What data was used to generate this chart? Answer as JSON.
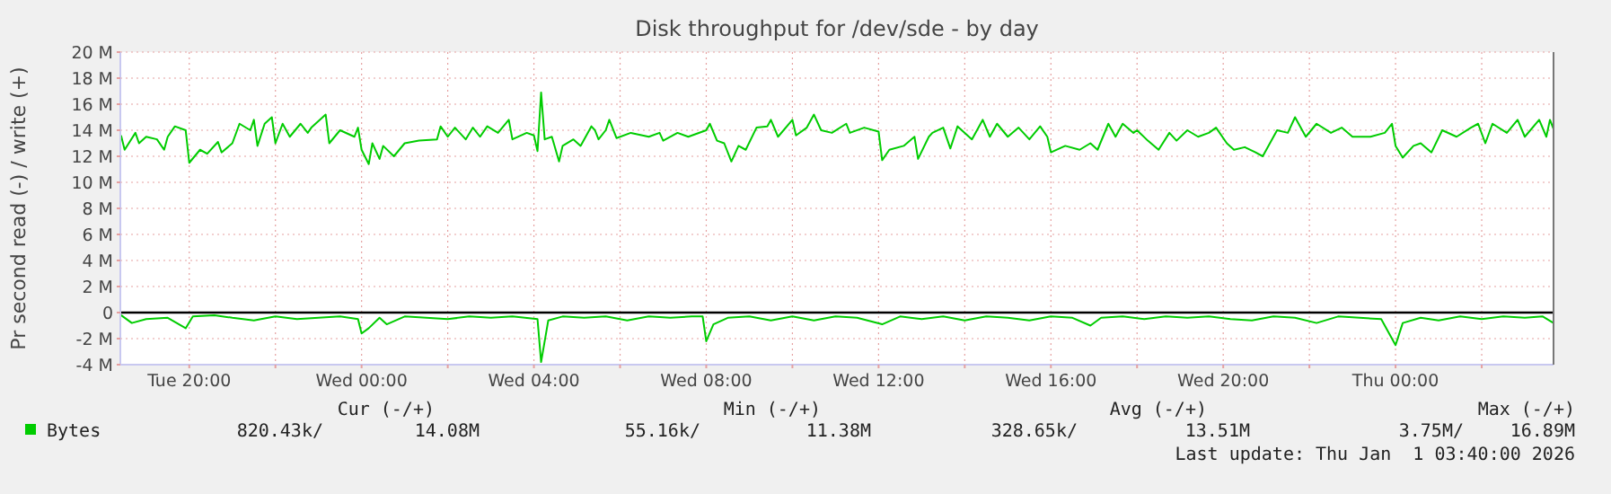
{
  "chart_data": {
    "type": "line",
    "title": "Disk throughput for /dev/sde - by day",
    "ylabel": "Pr second read (-) / write (+)",
    "xlim": [
      "2025-12-30T18:24",
      "2026-01-01T03:40"
    ],
    "xticks": [
      {
        "value": "2025-12-30T20:00",
        "label": "Tue 20:00"
      },
      {
        "value": "2025-12-30T22:00",
        "label": null
      },
      {
        "value": "2025-12-31T00:00",
        "label": "Wed 00:00"
      },
      {
        "value": "2025-12-31T02:00",
        "label": null
      },
      {
        "value": "2025-12-31T04:00",
        "label": "Wed 04:00"
      },
      {
        "value": "2025-12-31T06:00",
        "label": null
      },
      {
        "value": "2025-12-31T08:00",
        "label": "Wed 08:00"
      },
      {
        "value": "2025-12-31T10:00",
        "label": null
      },
      {
        "value": "2025-12-31T12:00",
        "label": "Wed 12:00"
      },
      {
        "value": "2025-12-31T14:00",
        "label": null
      },
      {
        "value": "2025-12-31T16:00",
        "label": "Wed 16:00"
      },
      {
        "value": "2025-12-31T18:00",
        "label": null
      },
      {
        "value": "2025-12-31T20:00",
        "label": "Wed 20:00"
      },
      {
        "value": "2025-12-31T22:00",
        "label": null
      },
      {
        "value": "2026-01-01T00:00",
        "label": "Thu 00:00"
      },
      {
        "value": "2026-01-01T02:00",
        "label": null
      }
    ],
    "ylim": [
      -4,
      20
    ],
    "yticks": [
      {
        "value": -4,
        "label": "-4 M"
      },
      {
        "value": -2,
        "label": "-2 M"
      },
      0,
      {
        "value": 2,
        "label": "2 M"
      },
      {
        "value": 4,
        "label": "4 M"
      },
      {
        "value": 6,
        "label": "6 M"
      },
      {
        "value": 8,
        "label": "8 M"
      },
      {
        "value": 10,
        "label": "10 M"
      },
      {
        "value": 12,
        "label": "12 M"
      },
      {
        "value": 14,
        "label": "14 M"
      },
      {
        "value": 16,
        "label": "16 M"
      },
      {
        "value": 18,
        "label": "18 M"
      },
      {
        "value": 20,
        "label": "20 M"
      }
    ],
    "grid": true,
    "legend": "bottom left",
    "ref_lines": [
      {
        "axis": "y",
        "value": 0,
        "color": "#000000"
      }
    ],
    "series": [
      {
        "name": "Bytes",
        "color": "#00cc00",
        "x": [
          "2025-12-30T18:25",
          "2025-12-30T18:30",
          "2025-12-30T18:45",
          "2025-12-30T18:50",
          "2025-12-30T19:00",
          "2025-12-30T19:15",
          "2025-12-30T19:25",
          "2025-12-30T19:30",
          "2025-12-30T19:40",
          "2025-12-30T19:55",
          "2025-12-30T20:00",
          "2025-12-30T20:15",
          "2025-12-30T20:25",
          "2025-12-30T20:40",
          "2025-12-30T20:45",
          "2025-12-30T21:00",
          "2025-12-30T21:10",
          "2025-12-30T21:25",
          "2025-12-30T21:30",
          "2025-12-30T21:35",
          "2025-12-30T21:45",
          "2025-12-30T21:55",
          "2025-12-30T22:00",
          "2025-12-30T22:10",
          "2025-12-30T22:20",
          "2025-12-30T22:35",
          "2025-12-30T22:45",
          "2025-12-30T22:50",
          "2025-12-30T23:10",
          "2025-12-30T23:15",
          "2025-12-30T23:30",
          "2025-12-30T23:50",
          "2025-12-30T23:55",
          "2025-12-31T00:00",
          "2025-12-31T00:10",
          "2025-12-31T00:15",
          "2025-12-31T00:25",
          "2025-12-31T00:30",
          "2025-12-31T00:45",
          "2025-12-31T01:00",
          "2025-12-31T01:20",
          "2025-12-31T01:45",
          "2025-12-31T01:50",
          "2025-12-31T02:00",
          "2025-12-31T02:10",
          "2025-12-31T02:25",
          "2025-12-31T02:35",
          "2025-12-31T02:45",
          "2025-12-31T02:55",
          "2025-12-31T03:10",
          "2025-12-31T03:25",
          "2025-12-31T03:30",
          "2025-12-31T03:50",
          "2025-12-31T04:00",
          "2025-12-31T04:05",
          "2025-12-31T04:10",
          "2025-12-31T04:15",
          "2025-12-31T04:25",
          "2025-12-31T04:35",
          "2025-12-31T04:40",
          "2025-12-31T04:55",
          "2025-12-31T05:05",
          "2025-12-31T05:20",
          "2025-12-31T05:25",
          "2025-12-31T05:30",
          "2025-12-31T05:40",
          "2025-12-31T05:45",
          "2025-12-31T05:55",
          "2025-12-31T06:15",
          "2025-12-31T06:40",
          "2025-12-31T06:55",
          "2025-12-31T07:00",
          "2025-12-31T07:20",
          "2025-12-31T07:35",
          "2025-12-31T08:00",
          "2025-12-31T08:05",
          "2025-12-31T08:15",
          "2025-12-31T08:25",
          "2025-12-31T08:35",
          "2025-12-31T08:45",
          "2025-12-31T08:55",
          "2025-12-31T09:10",
          "2025-12-31T09:25",
          "2025-12-31T09:30",
          "2025-12-31T09:40",
          "2025-12-31T10:00",
          "2025-12-31T10:05",
          "2025-12-31T10:20",
          "2025-12-31T10:30",
          "2025-12-31T10:40",
          "2025-12-31T10:55",
          "2025-12-31T11:15",
          "2025-12-31T11:20",
          "2025-12-31T11:40",
          "2025-12-31T12:00",
          "2025-12-31T12:05",
          "2025-12-31T12:15",
          "2025-12-31T12:35",
          "2025-12-31T12:50",
          "2025-12-31T12:55",
          "2025-12-31T13:10",
          "2025-12-31T13:15",
          "2025-12-31T13:30",
          "2025-12-31T13:40",
          "2025-12-31T13:50",
          "2025-12-31T14:10",
          "2025-12-31T14:25",
          "2025-12-31T14:35",
          "2025-12-31T14:45",
          "2025-12-31T15:00",
          "2025-12-31T15:15",
          "2025-12-31T15:30",
          "2025-12-31T15:45",
          "2025-12-31T15:55",
          "2025-12-31T16:00",
          "2025-12-31T16:20",
          "2025-12-31T16:40",
          "2025-12-31T16:55",
          "2025-12-31T17:05",
          "2025-12-31T17:20",
          "2025-12-31T17:30",
          "2025-12-31T17:40",
          "2025-12-31T17:55",
          "2025-12-31T18:00",
          "2025-12-31T18:15",
          "2025-12-31T18:30",
          "2025-12-31T18:45",
          "2025-12-31T18:55",
          "2025-12-31T19:10",
          "2025-12-31T19:25",
          "2025-12-31T19:40",
          "2025-12-31T19:50",
          "2025-12-31T20:05",
          "2025-12-31T20:15",
          "2025-12-31T20:30",
          "2025-12-31T20:45",
          "2025-12-31T20:55",
          "2025-12-31T21:05",
          "2025-12-31T21:15",
          "2025-12-31T21:30",
          "2025-12-31T21:40",
          "2025-12-31T21:55",
          "2025-12-31T22:10",
          "2025-12-31T22:30",
          "2025-12-31T22:45",
          "2025-12-31T23:00",
          "2025-12-31T23:25",
          "2025-12-31T23:45",
          "2025-12-31T23:55",
          "2026-01-01T00:00",
          "2026-01-01T00:10",
          "2026-01-01T00:25",
          "2026-01-01T00:35",
          "2026-01-01T00:50",
          "2026-01-01T01:05",
          "2026-01-01T01:25",
          "2026-01-01T01:45",
          "2026-01-01T01:55",
          "2026-01-01T02:05",
          "2026-01-01T02:15",
          "2026-01-01T02:35",
          "2026-01-01T02:50",
          "2026-01-01T03:00",
          "2026-01-01T03:20",
          "2026-01-01T03:30",
          "2026-01-01T03:35",
          "2026-01-01T03:40"
        ],
        "values": [
          13.6,
          12.5,
          13.8,
          13,
          13.5,
          13.3,
          12.5,
          13.5,
          14.3,
          14,
          11.5,
          12.5,
          12.2,
          13.1,
          12.3,
          13,
          14.5,
          14,
          14.8,
          12.8,
          14.5,
          15,
          13,
          14.5,
          13.5,
          14.5,
          13.8,
          14.2,
          15.2,
          13,
          14,
          13.5,
          14.2,
          12.5,
          11.4,
          13,
          11.8,
          12.8,
          12,
          13,
          13.2,
          13.3,
          14.3,
          13.5,
          14.2,
          13.3,
          14.2,
          13.5,
          14.3,
          13.8,
          14.8,
          13.3,
          13.8,
          13.6,
          12.4,
          16.9,
          13.3,
          13.5,
          11.6,
          12.8,
          13.3,
          12.8,
          14.3,
          14,
          13.3,
          14,
          14.8,
          13.4,
          13.8,
          13.5,
          13.8,
          13.2,
          13.8,
          13.5,
          14,
          14.5,
          13.2,
          13,
          11.6,
          12.8,
          12.5,
          14.2,
          14.3,
          14.8,
          13.5,
          14.8,
          13.6,
          14.2,
          15.2,
          14,
          13.8,
          14.5,
          13.8,
          14.2,
          13.9,
          11.7,
          12.5,
          12.8,
          13.5,
          11.8,
          13.5,
          13.8,
          14.2,
          12.6,
          14.3,
          13.3,
          14.8,
          13.5,
          14.5,
          13.5,
          14.2,
          13.3,
          14.3,
          13.5,
          12.3,
          12.8,
          12.5,
          13,
          12.5,
          14.5,
          13.5,
          14.5,
          13.8,
          14,
          13.2,
          12.5,
          13.8,
          13.2,
          14,
          13.5,
          13.8,
          14.2,
          13,
          12.5,
          12.7,
          12.3,
          12,
          13,
          14,
          13.8,
          15,
          13.5,
          14.5,
          13.8,
          14.2,
          13.5,
          13.5,
          13.8,
          14.5,
          12.8,
          11.9,
          12.8,
          13,
          12.3,
          14,
          13.5,
          14.2,
          14.5,
          13,
          14.5,
          13.8,
          14.8,
          13.5,
          14.8,
          13.5,
          14.8,
          14.1
        ]
      },
      {
        "color": "#00cc00",
        "x": [
          "2025-12-30T18:25",
          "2025-12-30T18:40",
          "2025-12-30T19:00",
          "2025-12-30T19:30",
          "2025-12-30T19:55",
          "2025-12-30T20:05",
          "2025-12-30T20:35",
          "2025-12-30T21:00",
          "2025-12-30T21:30",
          "2025-12-30T22:00",
          "2025-12-30T22:30",
          "2025-12-30T23:00",
          "2025-12-30T23:30",
          "2025-12-30T23:55",
          "2025-12-31T00:00",
          "2025-12-31T00:10",
          "2025-12-31T00:25",
          "2025-12-31T00:35",
          "2025-12-31T01:00",
          "2025-12-31T01:30",
          "2025-12-31T02:00",
          "2025-12-31T02:30",
          "2025-12-31T03:00",
          "2025-12-31T03:30",
          "2025-12-31T04:05",
          "2025-12-31T04:10",
          "2025-12-31T04:20",
          "2025-12-31T04:40",
          "2025-12-31T05:10",
          "2025-12-31T05:40",
          "2025-12-31T06:10",
          "2025-12-31T06:40",
          "2025-12-31T07:10",
          "2025-12-31T07:40",
          "2025-12-31T07:55",
          "2025-12-31T08:00",
          "2025-12-31T08:10",
          "2025-12-31T08:30",
          "2025-12-31T09:00",
          "2025-12-31T09:30",
          "2025-12-31T10:00",
          "2025-12-31T10:30",
          "2025-12-31T11:00",
          "2025-12-31T11:30",
          "2025-12-31T12:05",
          "2025-12-31T12:30",
          "2025-12-31T13:00",
          "2025-12-31T13:30",
          "2025-12-31T14:00",
          "2025-12-31T14:30",
          "2025-12-31T15:00",
          "2025-12-31T15:30",
          "2025-12-31T16:00",
          "2025-12-31T16:30",
          "2025-12-31T16:55",
          "2025-12-31T17:10",
          "2025-12-31T17:40",
          "2025-12-31T18:10",
          "2025-12-31T18:40",
          "2025-12-31T19:10",
          "2025-12-31T19:40",
          "2025-12-31T20:10",
          "2025-12-31T20:40",
          "2025-12-31T21:10",
          "2025-12-31T21:40",
          "2025-12-31T22:10",
          "2025-12-31T22:40",
          "2025-12-31T23:10",
          "2025-12-31T23:40",
          "2026-01-01T00:00",
          "2026-01-01T00:10",
          "2026-01-01T00:35",
          "2026-01-01T01:00",
          "2026-01-01T01:30",
          "2026-01-01T02:00",
          "2026-01-01T02:30",
          "2026-01-01T03:00",
          "2026-01-01T03:25",
          "2026-01-01T03:40"
        ],
        "values": [
          -0.2,
          -0.8,
          -0.5,
          -0.4,
          -1.2,
          -0.3,
          -0.2,
          -0.4,
          -0.6,
          -0.3,
          -0.5,
          -0.4,
          -0.3,
          -0.5,
          -1.6,
          -1.2,
          -0.4,
          -0.9,
          -0.3,
          -0.4,
          -0.5,
          -0.3,
          -0.4,
          -0.3,
          -0.5,
          -3.8,
          -0.6,
          -0.3,
          -0.4,
          -0.3,
          -0.6,
          -0.3,
          -0.4,
          -0.3,
          -0.3,
          -2.2,
          -0.9,
          -0.4,
          -0.3,
          -0.6,
          -0.3,
          -0.6,
          -0.3,
          -0.4,
          -0.9,
          -0.3,
          -0.5,
          -0.3,
          -0.6,
          -0.3,
          -0.4,
          -0.6,
          -0.3,
          -0.4,
          -1.0,
          -0.4,
          -0.3,
          -0.5,
          -0.3,
          -0.4,
          -0.3,
          -0.5,
          -0.6,
          -0.3,
          -0.4,
          -0.8,
          -0.3,
          -0.4,
          -0.5,
          -2.5,
          -0.8,
          -0.4,
          -0.6,
          -0.3,
          -0.5,
          -0.3,
          -0.4,
          -0.3,
          -0.8
        ]
      }
    ],
    "annotations": [
      "Cur (-/+)",
      "Min (-/+)",
      "Avg (-/+)",
      "Max (-/+)",
      "820.43k/",
      "14.08M",
      "55.16k/",
      "11.38M",
      "328.65k/",
      "13.51M",
      "3.75M/",
      "16.89M",
      "Last update: Thu Jan  1 03:40:00 2026"
    ]
  }
}
